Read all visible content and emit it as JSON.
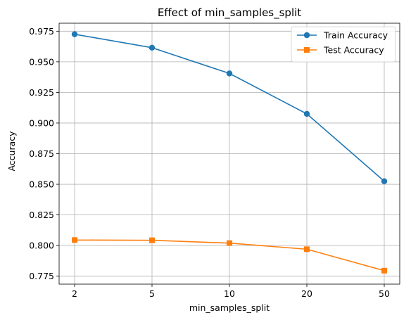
{
  "chart_data": {
    "type": "line",
    "title": "Effect of min_samples_split",
    "xlabel": "min_samples_split",
    "ylabel": "Accuracy",
    "categories": [
      "2",
      "5",
      "10",
      "20",
      "50"
    ],
    "ylim": [
      0.7685,
      0.9815
    ],
    "yticks": [
      "0.775",
      "0.800",
      "0.825",
      "0.850",
      "0.875",
      "0.900",
      "0.925",
      "0.950",
      "0.975"
    ],
    "grid": true,
    "legend_placement": "top-right",
    "series": [
      {
        "name": "Train Accuracy",
        "marker": "circle",
        "color": "#1f77b4",
        "values": [
          0.9725,
          0.9615,
          0.9405,
          0.9075,
          0.8525
        ]
      },
      {
        "name": "Test Accuracy",
        "marker": "square",
        "color": "#ff7f0e",
        "values": [
          0.8045,
          0.8043,
          0.802,
          0.797,
          0.7795
        ]
      }
    ]
  }
}
